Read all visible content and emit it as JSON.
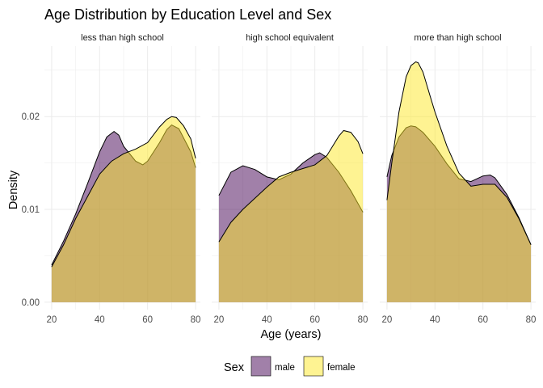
{
  "chart_data": {
    "type": "area",
    "title": "Age Distribution by Education Level and Sex",
    "xlabel": "Age (years)",
    "ylabel": "Density",
    "xlim": [
      17,
      82
    ],
    "ylim": [
      -0.0008,
      0.0276
    ],
    "x_ticks": [
      20,
      40,
      60,
      80
    ],
    "y_ticks": [
      0.0,
      0.01,
      0.02
    ],
    "y_tick_labels": [
      "0.00",
      "0.01",
      "0.02"
    ],
    "grid": true,
    "legend": {
      "title": "Sex",
      "position": "bottom",
      "entries": [
        {
          "label": "male",
          "color": "#440154"
        },
        {
          "label": "female",
          "color": "#FDE725"
        }
      ]
    },
    "colors": {
      "male": "#440154",
      "female": "#FDE725",
      "fill_opacity": 0.5
    },
    "panels": [
      {
        "label": "less than high school",
        "series": [
          {
            "name": "male",
            "x": [
              20,
              25,
              30,
              35,
              40,
              43,
              46,
              48,
              50,
              55,
              58,
              60,
              65,
              68,
              70,
              73,
              76,
              78,
              80
            ],
            "y": [
              0.004,
              0.0066,
              0.0095,
              0.0128,
              0.0162,
              0.0178,
              0.0184,
              0.018,
              0.0168,
              0.0152,
              0.0148,
              0.0152,
              0.0172,
              0.0186,
              0.0191,
              0.0187,
              0.0172,
              0.0162,
              0.0145
            ]
          },
          {
            "name": "female",
            "x": [
              20,
              25,
              30,
              35,
              40,
              45,
              50,
              55,
              60,
              65,
              68,
              70,
              72,
              75,
              78,
              80
            ],
            "y": [
              0.0038,
              0.0062,
              0.009,
              0.0114,
              0.0138,
              0.0152,
              0.016,
              0.0165,
              0.0172,
              0.0189,
              0.0197,
              0.02,
              0.0199,
              0.019,
              0.0176,
              0.0155
            ]
          }
        ]
      },
      {
        "label": "high school equivalent",
        "series": [
          {
            "name": "male",
            "x": [
              20,
              25,
              30,
              35,
              40,
              45,
              50,
              55,
              60,
              62,
              65,
              70,
              75,
              80
            ],
            "y": [
              0.0115,
              0.014,
              0.0147,
              0.0143,
              0.0135,
              0.0132,
              0.0138,
              0.015,
              0.0159,
              0.0161,
              0.0156,
              0.014,
              0.012,
              0.0097
            ]
          },
          {
            "name": "female",
            "x": [
              20,
              25,
              30,
              35,
              40,
              45,
              50,
              55,
              60,
              65,
              70,
              72,
              75,
              78,
              80
            ],
            "y": [
              0.0065,
              0.0086,
              0.01,
              0.0112,
              0.0124,
              0.0135,
              0.014,
              0.0144,
              0.0148,
              0.0158,
              0.0179,
              0.0185,
              0.0183,
              0.0173,
              0.016
            ]
          }
        ]
      },
      {
        "label": "more than high school",
        "series": [
          {
            "name": "male",
            "x": [
              20,
              22,
              25,
              28,
              30,
              32,
              35,
              40,
              45,
              50,
              55,
              60,
              63,
              65,
              70,
              75,
              80
            ],
            "y": [
              0.0135,
              0.0158,
              0.0178,
              0.0188,
              0.019,
              0.0189,
              0.0183,
              0.0168,
              0.0149,
              0.0133,
              0.013,
              0.0136,
              0.0137,
              0.0134,
              0.0116,
              0.0091,
              0.0062
            ]
          },
          {
            "name": "female",
            "x": [
              20,
              22,
              25,
              28,
              30,
              32,
              33,
              35,
              38,
              40,
              45,
              50,
              55,
              60,
              65,
              70,
              75,
              80
            ],
            "y": [
              0.011,
              0.015,
              0.0205,
              0.0243,
              0.0255,
              0.0259,
              0.0258,
              0.0248,
              0.0222,
              0.0205,
              0.0168,
              0.0139,
              0.0125,
              0.0127,
              0.0127,
              0.0113,
              0.009,
              0.0062
            ]
          }
        ]
      }
    ]
  }
}
